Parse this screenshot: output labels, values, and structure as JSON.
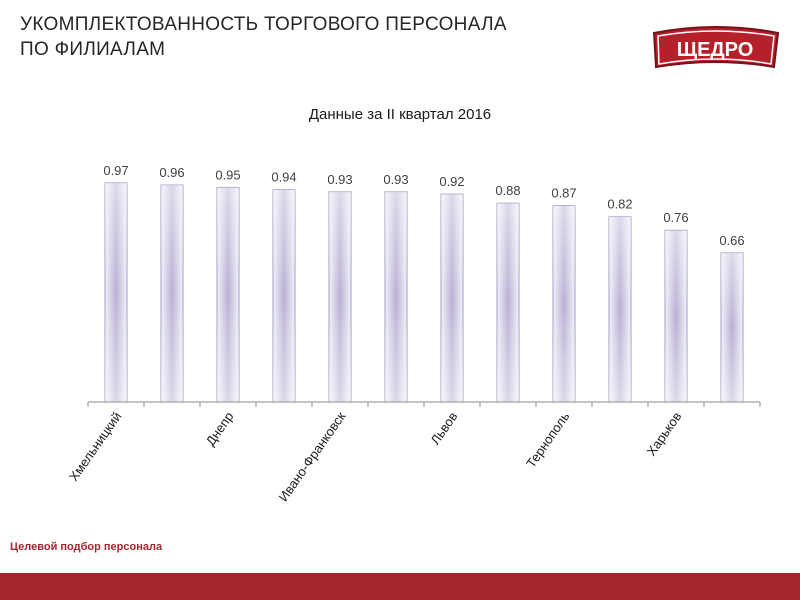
{
  "header": {
    "title_line1": "УКОМПЛЕКТОВАННОСТЬ ТОРГОВОГО ПЕРСОНАЛА",
    "title_line2": "ПО ФИЛИАЛАМ"
  },
  "logo": {
    "text": "ЩЕДРО"
  },
  "footer": {
    "note": "Целевой подбор персонала"
  },
  "colors": {
    "accent": "#a3262f",
    "bar_edge": "#c9c3de",
    "bar_center": "#b3a9d0",
    "bar_stroke": "#8f86b5"
  },
  "chart_data": {
    "type": "bar",
    "title": "Данные за II квартал 2016",
    "xlabel": "",
    "ylabel": "",
    "categories": [
      "Хмельницкий",
      "",
      "Днепр",
      "",
      "Ивано-Франковск",
      "",
      "Львов",
      "",
      "Тернополь",
      "",
      "Харьков",
      ""
    ],
    "values": [
      0.97,
      0.96,
      0.95,
      0.94,
      0.93,
      0.93,
      0.92,
      0.88,
      0.87,
      0.82,
      0.76,
      0.66
    ],
    "data_labels": [
      "0.97",
      "0.96",
      "0.95",
      "0.94",
      "0.93",
      "0.93",
      "0.92",
      "0.88",
      "0.87",
      "0.82",
      "0.76",
      "0.66"
    ],
    "ylim": [
      0,
      1
    ],
    "grid": false,
    "legend": "none"
  }
}
